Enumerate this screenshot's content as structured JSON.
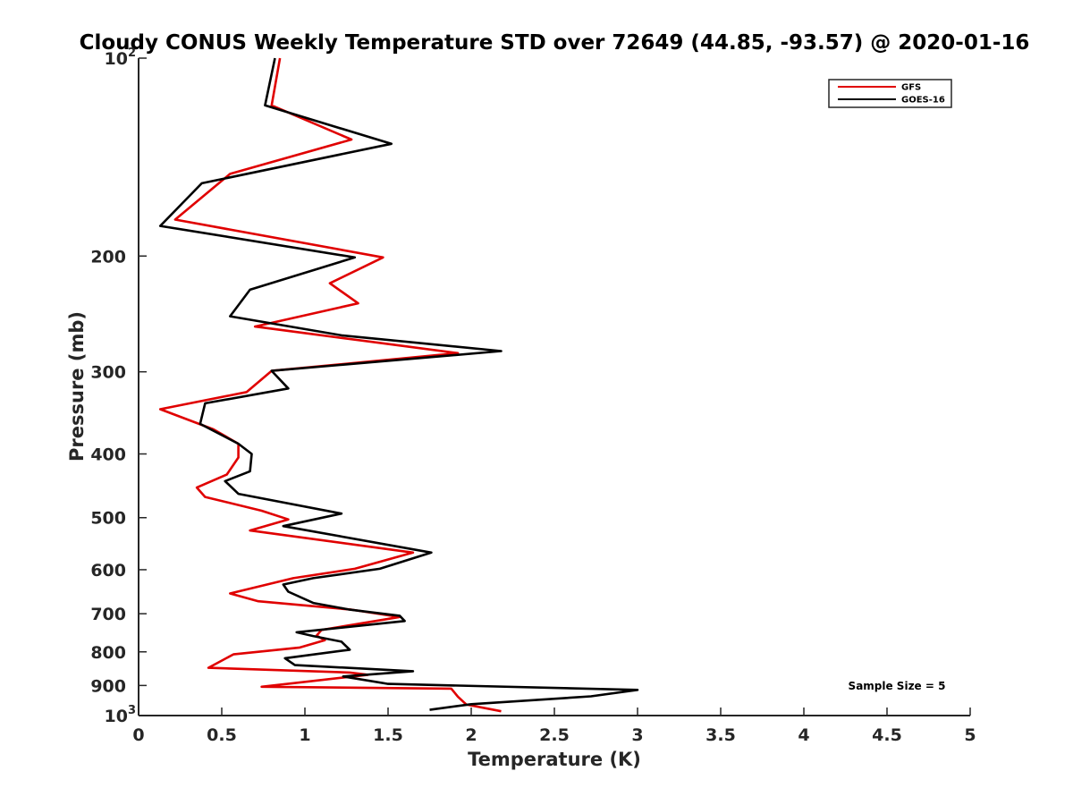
{
  "chart_data": {
    "type": "line",
    "title": "Cloudy CONUS Weekly Temperature STD over 72649 (44.85, -93.57) @ 2020-01-16",
    "xlabel": "Temperature (K)",
    "ylabel": "Pressure (mb)",
    "xlim": [
      0,
      5
    ],
    "ylim": [
      100,
      1000
    ],
    "y_scale": "log",
    "y_reversed": true,
    "grid": false,
    "legend_position": "top-right",
    "x_ticks": [
      "0",
      "0.5",
      "1",
      "1.5",
      "2",
      "2.5",
      "3",
      "3.5",
      "4",
      "4.5",
      "5"
    ],
    "x_tick_values": [
      0,
      0.5,
      1,
      1.5,
      2,
      2.5,
      3,
      3.5,
      4,
      4.5,
      5
    ],
    "y_ticks": [
      {
        "value": 100,
        "base": "10",
        "exp": "2"
      },
      {
        "value": 200,
        "base": "200",
        "exp": ""
      },
      {
        "value": 300,
        "base": "300",
        "exp": ""
      },
      {
        "value": 400,
        "base": "400",
        "exp": ""
      },
      {
        "value": 500,
        "base": "500",
        "exp": ""
      },
      {
        "value": 600,
        "base": "600",
        "exp": ""
      },
      {
        "value": 700,
        "base": "700",
        "exp": ""
      },
      {
        "value": 800,
        "base": "800",
        "exp": ""
      },
      {
        "value": 900,
        "base": "900",
        "exp": ""
      },
      {
        "value": 1000,
        "base": "10",
        "exp": "3"
      }
    ],
    "series": [
      {
        "name": "GFS",
        "color": "#e00000",
        "points": [
          [
            0.85,
            100
          ],
          [
            0.8,
            118
          ],
          [
            1.28,
            133
          ],
          [
            0.55,
            150
          ],
          [
            0.22,
            176
          ],
          [
            1.47,
            201
          ],
          [
            1.15,
            220
          ],
          [
            1.32,
            236
          ],
          [
            0.7,
            256
          ],
          [
            1.92,
            281
          ],
          [
            0.8,
            299
          ],
          [
            0.65,
            322
          ],
          [
            0.13,
            342
          ],
          [
            0.45,
            367
          ],
          [
            0.6,
            386
          ],
          [
            0.6,
            405
          ],
          [
            0.53,
            430
          ],
          [
            0.35,
            450
          ],
          [
            0.4,
            465
          ],
          [
            0.74,
            488
          ],
          [
            0.9,
            503
          ],
          [
            0.67,
            523
          ],
          [
            1.65,
            565
          ],
          [
            1.3,
            598
          ],
          [
            0.93,
            618
          ],
          [
            0.55,
            652
          ],
          [
            0.72,
            670
          ],
          [
            1.28,
            690
          ],
          [
            1.57,
            708
          ],
          [
            1.1,
            741
          ],
          [
            1.07,
            756
          ],
          [
            1.12,
            768
          ],
          [
            0.97,
            788
          ],
          [
            0.57,
            807
          ],
          [
            0.42,
            846
          ],
          [
            1.27,
            860
          ],
          [
            1.38,
            867
          ],
          [
            0.74,
            904
          ],
          [
            1.88,
            910
          ],
          [
            1.92,
            936
          ],
          [
            1.97,
            962
          ],
          [
            2.18,
            985
          ]
        ]
      },
      {
        "name": "GOES-16",
        "color": "#000000",
        "points": [
          [
            0.82,
            100
          ],
          [
            0.76,
            118
          ],
          [
            1.52,
            135
          ],
          [
            0.38,
            155
          ],
          [
            0.13,
            180
          ],
          [
            1.3,
            201
          ],
          [
            0.67,
            225
          ],
          [
            0.55,
            247
          ],
          [
            1.22,
            264
          ],
          [
            2.18,
            279
          ],
          [
            0.8,
            299
          ],
          [
            0.9,
            318
          ],
          [
            0.4,
            335
          ],
          [
            0.37,
            360
          ],
          [
            0.6,
            386
          ],
          [
            0.68,
            400
          ],
          [
            0.67,
            425
          ],
          [
            0.52,
            440
          ],
          [
            0.6,
            460
          ],
          [
            1.22,
            493
          ],
          [
            0.87,
            515
          ],
          [
            1.76,
            565
          ],
          [
            1.45,
            598
          ],
          [
            1.05,
            618
          ],
          [
            0.87,
            632
          ],
          [
            0.9,
            648
          ],
          [
            1.05,
            674
          ],
          [
            1.27,
            690
          ],
          [
            1.57,
            705
          ],
          [
            1.6,
            718
          ],
          [
            0.95,
            747
          ],
          [
            1.05,
            757
          ],
          [
            1.22,
            772
          ],
          [
            1.27,
            794
          ],
          [
            0.88,
            818
          ],
          [
            0.94,
            838
          ],
          [
            1.65,
            856
          ],
          [
            1.23,
            872
          ],
          [
            1.5,
            895
          ],
          [
            3.0,
            914
          ],
          [
            2.72,
            935
          ],
          [
            2.0,
            961
          ],
          [
            1.75,
            980
          ]
        ]
      }
    ],
    "annotation": "Sample Size = 5"
  },
  "legend": {
    "items": [
      {
        "label": "GFS",
        "color": "#e00000"
      },
      {
        "label": "GOES-16",
        "color": "#000000"
      }
    ]
  }
}
